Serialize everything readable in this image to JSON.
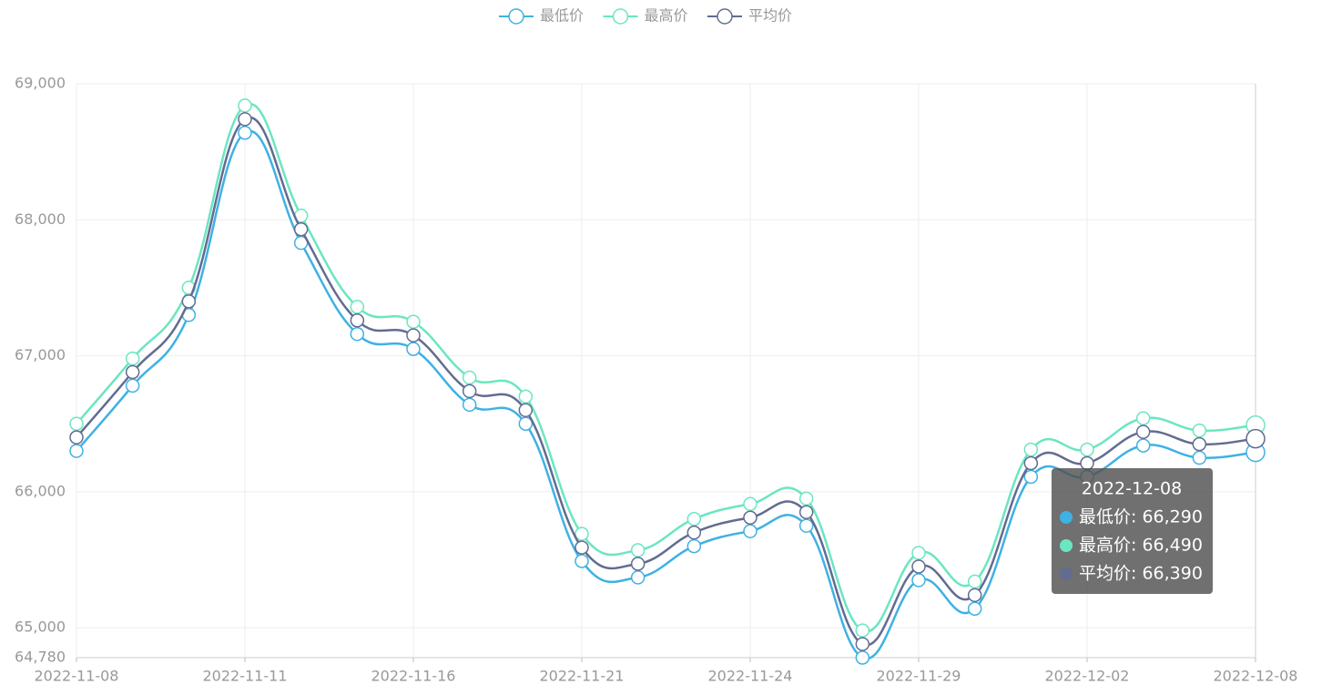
{
  "chart_data": {
    "type": "line",
    "categories": [
      "2022-11-08",
      null,
      null,
      "2022-11-11",
      null,
      null,
      "2022-11-16",
      null,
      null,
      "2022-11-21",
      null,
      null,
      "2022-11-24",
      null,
      null,
      "2022-11-29",
      null,
      null,
      "2022-12-02",
      null,
      null,
      "2022-12-08"
    ],
    "series": [
      {
        "name": "最低价",
        "color": "#3fb1e3",
        "values": [
          66300,
          66780,
          67300,
          68640,
          67830,
          67160,
          67050,
          66640,
          66500,
          65490,
          65370,
          65600,
          65710,
          65750,
          64780,
          65350,
          65140,
          66110,
          66110,
          66340,
          66250,
          66290
        ]
      },
      {
        "name": "最高价",
        "color": "#6be6c1",
        "values": [
          66500,
          66980,
          67500,
          68840,
          68030,
          67360,
          67250,
          66840,
          66700,
          65690,
          65570,
          65800,
          65910,
          65950,
          64980,
          65550,
          65340,
          66310,
          66310,
          66540,
          66450,
          66490
        ]
      },
      {
        "name": "平均价",
        "color": "#626c91",
        "values": [
          66400,
          66880,
          67400,
          68740,
          67930,
          67260,
          67150,
          66740,
          66600,
          65590,
          65470,
          65700,
          65810,
          65850,
          64880,
          65450,
          65240,
          66210,
          66210,
          66440,
          66350,
          66390
        ]
      }
    ],
    "ylim": [
      64780,
      69000
    ],
    "yticks": [
      {
        "value": 64780,
        "label": "64,780"
      },
      {
        "value": 65000,
        "label": "65,000"
      },
      {
        "value": 66000,
        "label": "66,000"
      },
      {
        "value": 67000,
        "label": "67,000"
      },
      {
        "value": 68000,
        "label": "68,000"
      },
      {
        "value": 69000,
        "label": "69,000"
      }
    ],
    "grid": true,
    "legend": "top",
    "tooltip": {
      "title": "2022-12-08",
      "items": [
        "最低价: 66,290",
        "最高价: 66,490",
        "平均价: 66,390"
      ]
    }
  }
}
